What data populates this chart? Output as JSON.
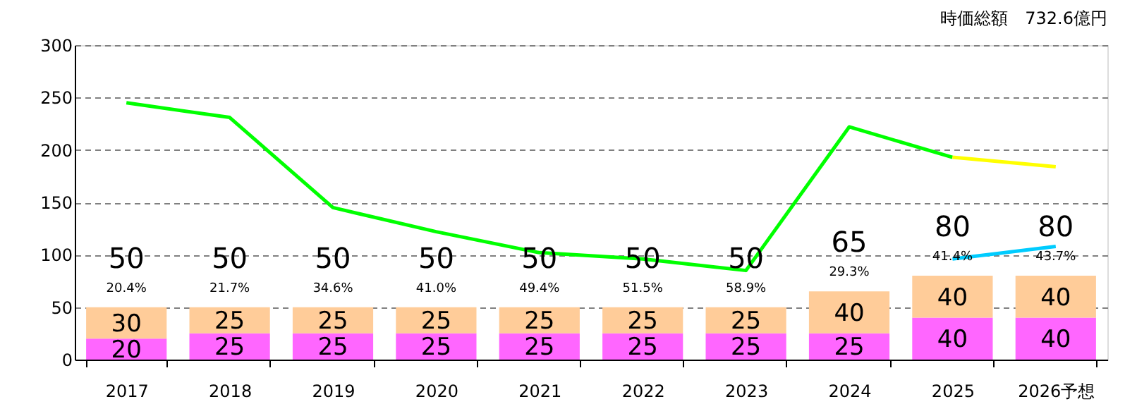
{
  "chart_data": {
    "type": "bar",
    "stacked": true,
    "categories": [
      "2017",
      "2018",
      "2019",
      "2020",
      "2021",
      "2022",
      "2023",
      "2024",
      "2025",
      "2026予想"
    ],
    "series": [
      {
        "color": "#ff66ff",
        "values": [
          20,
          25,
          25,
          25,
          25,
          25,
          25,
          25,
          40,
          40
        ],
        "value_labels": [
          "20",
          "25",
          "25",
          "25",
          "25",
          "25",
          "25",
          "25",
          "40",
          "40"
        ]
      },
      {
        "color": "#ffcc99",
        "values": [
          30,
          25,
          25,
          25,
          25,
          25,
          25,
          40,
          40,
          40
        ],
        "value_labels": [
          "30",
          "25",
          "25",
          "25",
          "25",
          "25",
          "25",
          "40",
          "40",
          "40"
        ]
      },
      {
        "type": "line",
        "color": "#00ff00",
        "values": [
          245,
          231,
          145,
          122,
          102,
          96,
          85,
          222,
          193,
          null
        ]
      },
      {
        "type": "line",
        "color": "#ffff00",
        "values": [
          null,
          null,
          null,
          null,
          null,
          null,
          null,
          null,
          193,
          184
        ]
      },
      {
        "type": "line",
        "color": "#00ccff",
        "values": [
          null,
          null,
          null,
          null,
          null,
          null,
          null,
          null,
          96,
          108
        ]
      }
    ],
    "totals": [
      "50",
      "50",
      "50",
      "50",
      "50",
      "50",
      "50",
      "65",
      "80",
      "80"
    ],
    "annotations": [
      "時価総額　732.6億円",
      "20.4%",
      "21.7%",
      "34.6%",
      "41.0%",
      "49.4%",
      "51.5%",
      "58.9%",
      "29.3%",
      "41.4%",
      "43.7%"
    ],
    "ylim": [
      0,
      300
    ],
    "yticks": [
      0,
      50,
      100,
      150,
      200,
      250,
      300
    ],
    "grid": "y"
  }
}
